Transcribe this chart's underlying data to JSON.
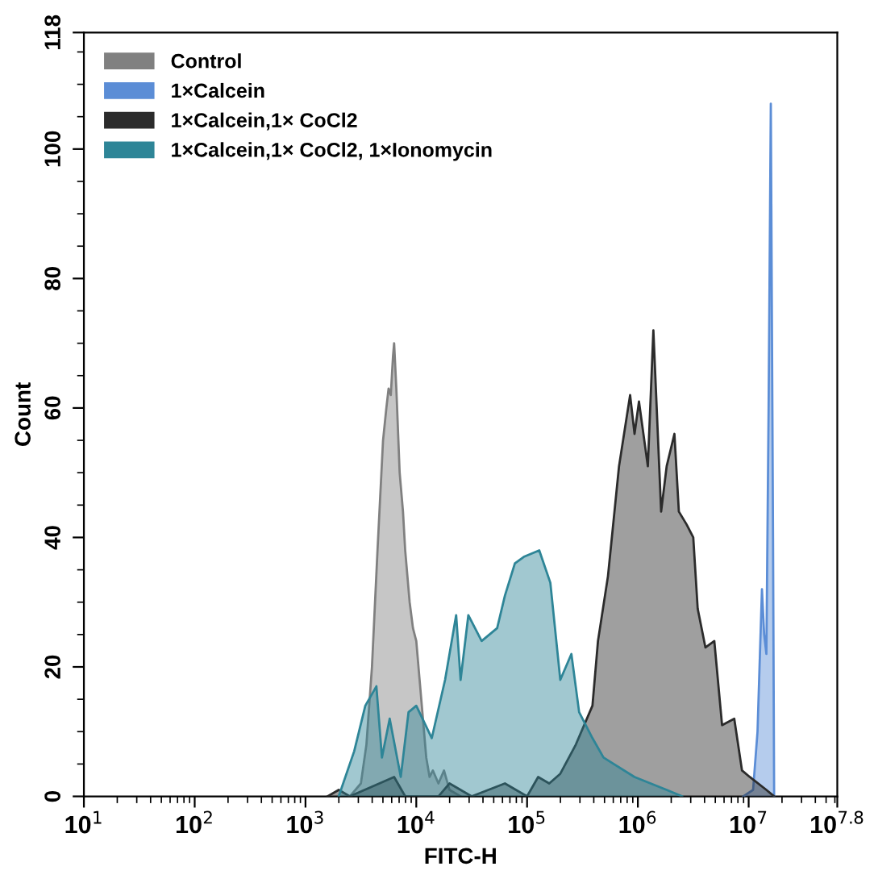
{
  "chart_data": {
    "type": "area",
    "xlabel": "FITC-H",
    "ylabel": "Count",
    "log": "x",
    "xlim": [
      10,
      63095734
    ],
    "xticks": [
      {
        "value": 10,
        "label": "10$^{1}$"
      },
      {
        "value": 100,
        "label": "10$^{2}$"
      },
      {
        "value": 1000,
        "label": "10$^{3}$"
      },
      {
        "value": 10000,
        "label": "10$^{4}$"
      },
      {
        "value": 100000,
        "label": "10$^{5}$"
      },
      {
        "value": 1000000,
        "label": "10$^{6}$"
      },
      {
        "value": 10000000,
        "label": "10$^{7}$"
      },
      {
        "value": 63095734,
        "label": "10$^{7.8}$"
      }
    ],
    "ylim": [
      0,
      118
    ],
    "yticks": [
      0,
      20,
      40,
      60,
      80,
      100,
      118
    ],
    "grid": false,
    "legend": "top left",
    "series": [
      {
        "name": "Control",
        "color": "#808080",
        "x": [
          2512,
          3162,
          3548,
          3981,
          4467,
          5012,
          5370,
          5623,
          5888,
          6166,
          6310,
          6607,
          7079,
          7586,
          7943,
          8710,
          9333,
          10000,
          10715,
          11482,
          12303,
          13183,
          14125,
          15849,
          17783,
          19953,
          25119
        ],
        "values": [
          0,
          2,
          8,
          20,
          38,
          55,
          60,
          63,
          62,
          68,
          70,
          63,
          50,
          44,
          38,
          30,
          26,
          24,
          18,
          12,
          6,
          3,
          4,
          2,
          4,
          1,
          0
        ]
      },
      {
        "name": "1×Calcein",
        "color": "#5b8dd6",
        "x": [
          8913000,
          10965000,
          12023000,
          13183000,
          13804000,
          14454000,
          15136000,
          15849000,
          16596000,
          16982000
        ],
        "values": [
          0,
          1,
          10,
          32,
          25,
          22,
          60,
          107,
          40,
          0
        ]
      },
      {
        "name": "1×Calcein,1× CoCl2",
        "color": "#2b2b2b",
        "x": [
          1585,
          1995,
          2512,
          6310,
          7943,
          15849,
          19953,
          31623,
          63096,
          100000,
          125893,
          158489,
          199526,
          275423,
          389045,
          436516,
          537032,
          676083,
          851138,
          933254,
          1023293,
          1230269,
          1380384,
          1621810,
          1819701,
          2137962,
          2344229,
          2754229,
          3162278,
          3467369,
          4073803,
          4897788,
          5754399,
          7413102,
          8709636,
          10232930,
          14454398,
          16982437
        ],
        "values": [
          0,
          1,
          0,
          3,
          0,
          0,
          2,
          0,
          2,
          0,
          3,
          2,
          3.5,
          8,
          14,
          24,
          34,
          51,
          62,
          56,
          61,
          51,
          72,
          44,
          51,
          56,
          44,
          42,
          40,
          29,
          23,
          24,
          11,
          12,
          4,
          3,
          1,
          0
        ]
      },
      {
        "name": "1×Calcein,1× CoCl2, 1×Ionomycin",
        "color": "#2e8597",
        "x": [
          1995,
          2754,
          3467,
          4365,
          4898,
          5754,
          7244,
          8511,
          10000,
          13804,
          18197,
          22909,
          25119,
          29512,
          38905,
          53703,
          63096,
          77625,
          93325,
          128825,
          162181,
          199526,
          251189,
          295121,
          389045,
          489779,
          933254,
          1819701,
          2511886
        ],
        "values": [
          0,
          7,
          14,
          17,
          6,
          12,
          3,
          13,
          14,
          9,
          18,
          28,
          18,
          28,
          24,
          26,
          31,
          36,
          37,
          38,
          33,
          18,
          22,
          13,
          9,
          6,
          3,
          1,
          0
        ]
      }
    ]
  }
}
